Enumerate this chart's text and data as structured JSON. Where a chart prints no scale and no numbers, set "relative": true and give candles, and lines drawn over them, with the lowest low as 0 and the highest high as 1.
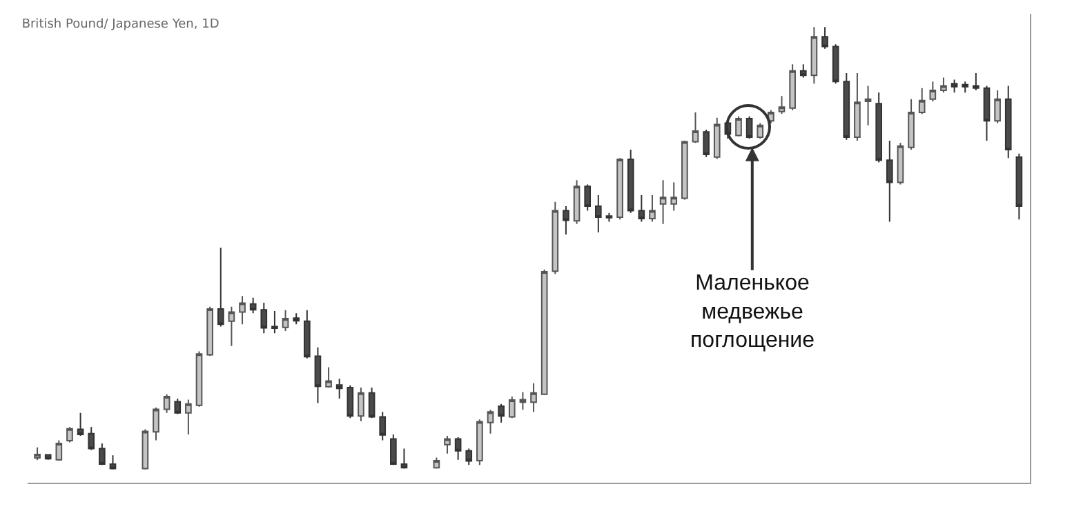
{
  "chart_data": {
    "type": "candlestick",
    "title": "British Pound/ Japanese Yen, 1D",
    "relative": true,
    "grid": false,
    "categories": [
      null,
      null,
      null,
      null,
      null,
      null,
      null,
      null,
      null,
      null,
      null,
      null,
      null,
      null,
      null,
      null,
      null,
      null,
      null,
      null,
      null,
      null,
      null,
      null,
      null,
      null,
      null,
      null,
      null,
      null,
      null,
      null,
      null,
      null,
      null,
      null,
      null,
      null,
      null,
      null,
      null,
      null,
      null,
      null,
      null,
      null,
      null,
      null,
      null,
      null,
      null,
      null,
      null,
      null,
      null,
      null,
      null,
      null,
      null,
      null,
      null,
      null,
      null,
      null,
      null,
      null,
      null,
      null,
      null,
      null,
      null,
      null,
      null,
      null,
      null,
      null,
      null,
      null,
      null,
      null,
      null,
      null,
      null,
      null,
      null,
      null,
      null,
      null,
      null,
      null,
      null,
      null
    ],
    "ohlc": [
      [
        0.026,
        0.05,
        0.021,
        0.034
      ],
      [
        0.033,
        0.034,
        0.022,
        0.024
      ],
      [
        0.022,
        0.066,
        0.02,
        0.059
      ],
      [
        0.065,
        0.096,
        0.061,
        0.092
      ],
      [
        0.091,
        0.128,
        0.076,
        0.079
      ],
      [
        0.081,
        0.096,
        0.044,
        0.047
      ],
      [
        0.047,
        0.059,
        0.01,
        0.012
      ],
      [
        0.012,
        0.032,
        0,
        0.002
      ],
      null,
      null,
      [
        0.002,
        0.091,
        0,
        0.086
      ],
      [
        0.085,
        0.14,
        0.066,
        0.136
      ],
      [
        0.136,
        0.17,
        0.128,
        0.165
      ],
      [
        0.153,
        0.16,
        0.125,
        0.128
      ],
      [
        0.128,
        0.158,
        0.079,
        0.148
      ],
      [
        0.145,
        0.267,
        0.142,
        0.261
      ],
      [
        0.259,
        0.368,
        0.257,
        0.363
      ],
      [
        0.363,
        0.501,
        0.323,
        0.328
      ],
      [
        0.335,
        0.368,
        0.279,
        0.356
      ],
      [
        0.356,
        0.392,
        0.328,
        0.376
      ],
      [
        0.374,
        0.388,
        0.353,
        0.361
      ],
      [
        0.361,
        0.377,
        0.308,
        0.32
      ],
      [
        0.323,
        0.358,
        0.308,
        0.319
      ],
      [
        0.321,
        0.36,
        0.313,
        0.341
      ],
      [
        0.342,
        0.353,
        0.328,
        0.336
      ],
      [
        0.335,
        0.36,
        0.251,
        0.255
      ],
      [
        0.256,
        0.276,
        0.15,
        0.188
      ],
      [
        0.187,
        0.231,
        0.185,
        0.2
      ],
      [
        0.191,
        0.205,
        0.16,
        0.183
      ],
      [
        0.185,
        0.19,
        0.116,
        0.121
      ],
      [
        0.121,
        0.185,
        0.109,
        0.173
      ],
      [
        0.173,
        0.185,
        0.116,
        0.119
      ],
      [
        0.119,
        0.13,
        0.066,
        0.078
      ],
      [
        0.069,
        0.079,
        0.01,
        0.012
      ],
      [
        0.012,
        0.047,
        0.002,
        0.004
      ],
      null,
      null,
      [
        0.004,
        0.027,
        0.002,
        0.02
      ],
      [
        0.056,
        0.076,
        0.036,
        0.069
      ],
      [
        0.069,
        0.073,
        0.022,
        0.042
      ],
      [
        0.042,
        0.047,
        0.01,
        0.019
      ],
      [
        0.02,
        0.113,
        0.01,
        0.108
      ],
      [
        0.106,
        0.135,
        0.081,
        0.13
      ],
      [
        0.143,
        0.148,
        0.106,
        0.121
      ],
      [
        0.119,
        0.165,
        0.116,
        0.157
      ],
      [
        0.152,
        0.175,
        0.135,
        0.158
      ],
      [
        0.152,
        0.195,
        0.13,
        0.173
      ],
      [
        0.17,
        0.452,
        0.168,
        0.447
      ],
      [
        0.448,
        0.605,
        0.442,
        0.585
      ],
      [
        0.585,
        0.595,
        0.531,
        0.563
      ],
      [
        0.562,
        0.654,
        0.555,
        0.64
      ],
      [
        0.64,
        0.644,
        0.585,
        0.595
      ],
      [
        0.595,
        0.62,
        0.536,
        0.57
      ],
      [
        0.573,
        0.58,
        0.56,
        0.569
      ],
      [
        0.57,
        0.704,
        0.565,
        0.701
      ],
      [
        0.701,
        0.723,
        0.58,
        0.585
      ],
      [
        0.585,
        0.62,
        0.56,
        0.567
      ],
      [
        0.567,
        0.62,
        0.56,
        0.585
      ],
      [
        0.6,
        0.654,
        0.555,
        0.615
      ],
      [
        0.6,
        0.649,
        0.585,
        0.615
      ],
      [
        0.613,
        0.743,
        0.61,
        0.741
      ],
      [
        0.741,
        0.807,
        0.738,
        0.765
      ],
      [
        0.763,
        0.768,
        0.706,
        0.712
      ],
      [
        0.706,
        0.795,
        0.702,
        0.78
      ],
      [
        0.783,
        0.788,
        0.748,
        0.758
      ],
      [
        0.755,
        0.798,
        0.753,
        0.793
      ],
      [
        0.793,
        0.798,
        0.748,
        0.751
      ],
      [
        0.751,
        0.783,
        0.748,
        0.778
      ],
      [
        0.788,
        0.812,
        0.783,
        0.807
      ],
      [
        0.809,
        0.844,
        0.804,
        0.819
      ],
      [
        0.817,
        0.916,
        0.812,
        0.901
      ],
      [
        0.901,
        0.916,
        0.886,
        0.891
      ],
      [
        0.891,
        1,
        0.872,
        0.978
      ],
      [
        0.978,
        1,
        0.951,
        0.956
      ],
      [
        0.956,
        0.961,
        0.872,
        0.877
      ],
      [
        0.877,
        0.896,
        0.745,
        0.751
      ],
      [
        0.751,
        0.896,
        0.743,
        0.83
      ],
      [
        0.832,
        0.867,
        0.778,
        0.837
      ],
      [
        0.827,
        0.852,
        0.694,
        0.699
      ],
      [
        0.699,
        0.743,
        0.56,
        0.649
      ],
      [
        0.649,
        0.738,
        0.644,
        0.731
      ],
      [
        0.728,
        0.837,
        0.723,
        0.807
      ],
      [
        0.807,
        0.862,
        0.803,
        0.834
      ],
      [
        0.837,
        0.877,
        0.832,
        0.857
      ],
      [
        0.857,
        0.886,
        0.852,
        0.867
      ],
      [
        0.872,
        0.881,
        0.852,
        0.865
      ],
      [
        0.87,
        0.877,
        0.852,
        0.865
      ],
      [
        0.867,
        0.896,
        0.857,
        0.862
      ],
      [
        0.862,
        0.867,
        0.743,
        0.788
      ],
      [
        0.788,
        0.857,
        0.783,
        0.837
      ],
      [
        0.837,
        0.867,
        0.704,
        0.723
      ],
      [
        0.706,
        0.714,
        0.565,
        0.595
      ]
    ],
    "annotations": [
      "Маленькое\nмедвежье\nпоглощение"
    ]
  }
}
